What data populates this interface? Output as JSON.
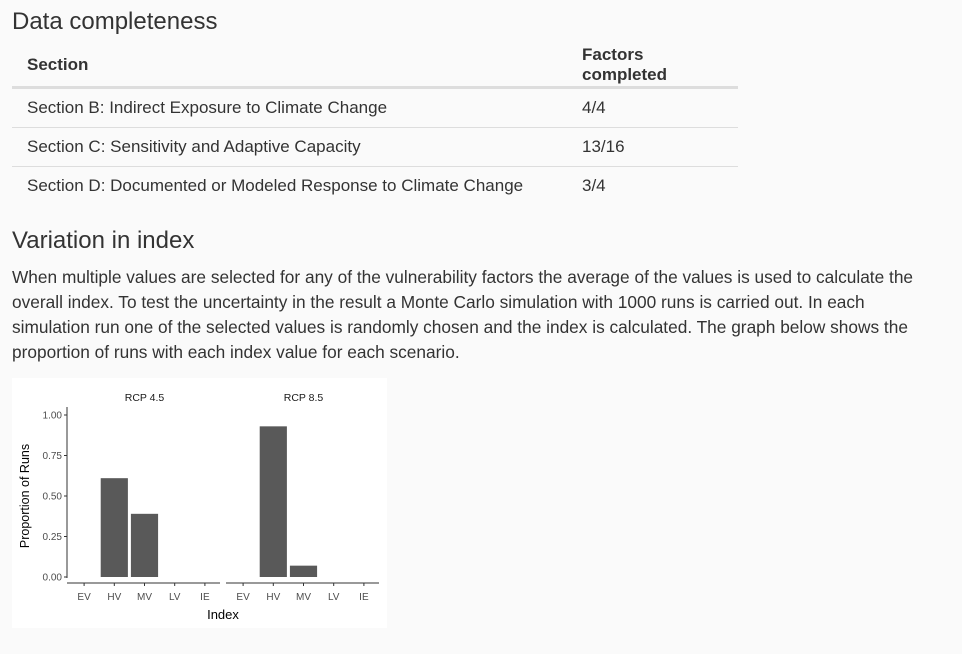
{
  "completeness": {
    "heading": "Data completeness",
    "headers": [
      "Section",
      "Factors completed"
    ],
    "rows": [
      [
        "Section B: Indirect Exposure to Climate Change",
        "4/4"
      ],
      [
        "Section C: Sensitivity and Adaptive Capacity",
        "13/16"
      ],
      [
        "Section D: Documented or Modeled Response to Climate Change",
        "3/4"
      ]
    ]
  },
  "variation": {
    "heading": "Variation in index",
    "paragraph": "When multiple values are selected for any of the vulnerability factors the average of the values is used to calculate the overall index. To test the uncertainty in the result a Monte Carlo simulation with 1000 runs is carried out. In each simulation run one of the selected values is randomly chosen and the index is calculated. The graph below shows the proportion of runs with each index value for each scenario."
  },
  "chart_data": {
    "type": "bar",
    "categories": [
      "EV",
      "HV",
      "MV",
      "LV",
      "IE"
    ],
    "xlabel": "Index",
    "ylabel": "Proportion of Runs",
    "ylim": [
      0,
      1
    ],
    "yticks": [
      "0.00",
      "0.25",
      "0.50",
      "0.75",
      "1.00"
    ],
    "bar_color": "#595959",
    "panels": [
      {
        "title": "RCP 4.5",
        "values": [
          0,
          0.61,
          0.39,
          0,
          0
        ]
      },
      {
        "title": "RCP 8.5",
        "values": [
          0,
          0.93,
          0.07,
          0,
          0
        ]
      }
    ]
  }
}
